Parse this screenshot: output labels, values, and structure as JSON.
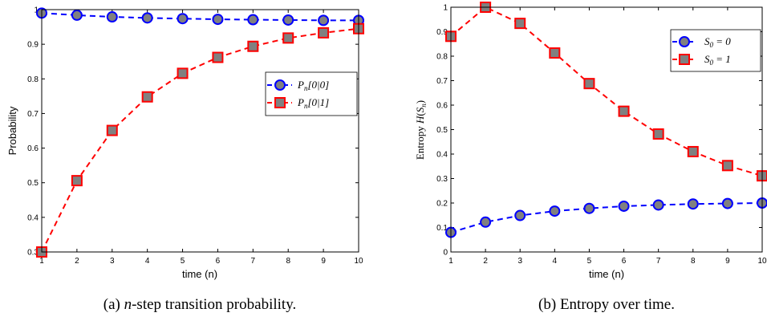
{
  "chart_data": [
    {
      "type": "line",
      "caption": "(a) n-step transition probability.",
      "xlabel": "time (n)",
      "ylabel": "Probability",
      "xlim": [
        1,
        10
      ],
      "ylim": [
        0.3,
        1
      ],
      "x": [
        1,
        2,
        3,
        4,
        5,
        6,
        7,
        8,
        9,
        10
      ],
      "xticks": [
        "1",
        "2",
        "3",
        "4",
        "5",
        "6",
        "7",
        "8",
        "9",
        "10"
      ],
      "yticks": [
        0.3,
        0.4,
        0.5,
        0.6,
        0.7,
        0.8,
        0.9,
        1
      ],
      "yticklabels": [
        "0.3",
        "0.4",
        "0.5",
        "0.6",
        "0.7",
        "0.8",
        "0.9",
        "1"
      ],
      "legend_position": "right-middle",
      "series": [
        {
          "name": "Pn[0|0]",
          "color": "#0000ff",
          "marker": "circle",
          "values": [
            0.99,
            0.984,
            0.979,
            0.976,
            0.974,
            0.972,
            0.971,
            0.97,
            0.969,
            0.969
          ]
        },
        {
          "name": "Pn[0|1]",
          "color": "#ff0000",
          "marker": "square",
          "values": [
            0.3,
            0.506,
            0.651,
            0.748,
            0.816,
            0.862,
            0.894,
            0.918,
            0.933,
            0.945
          ]
        }
      ]
    },
    {
      "type": "line",
      "caption": "(b) Entropy over time.",
      "xlabel": "time (n)",
      "ylabel": "Entropy H(Sn)",
      "xlim": [
        1,
        10
      ],
      "ylim": [
        0,
        1
      ],
      "x": [
        1,
        2,
        3,
        4,
        5,
        6,
        7,
        8,
        9,
        10
      ],
      "xticks": [
        "1",
        "2",
        "3",
        "4",
        "5",
        "6",
        "7",
        "8",
        "9",
        "10"
      ],
      "yticks": [
        0,
        0.1,
        0.2,
        0.3,
        0.4,
        0.5,
        0.6,
        0.7,
        0.8,
        0.9,
        1
      ],
      "yticklabels": [
        "0",
        "0.1",
        "0.2",
        "0.3",
        "0.4",
        "0.5",
        "0.6",
        "0.7",
        "0.8",
        "0.9",
        "1"
      ],
      "legend_position": "top-right",
      "series": [
        {
          "name": "S0 = 0",
          "color": "#0000ff",
          "marker": "circle",
          "values": [
            0.08,
            0.122,
            0.149,
            0.167,
            0.178,
            0.187,
            0.192,
            0.196,
            0.198,
            0.2
          ]
        },
        {
          "name": "S0 = 1",
          "color": "#ff0000",
          "marker": "square",
          "values": [
            0.881,
            1.0,
            0.934,
            0.813,
            0.688,
            0.575,
            0.482,
            0.41,
            0.353,
            0.311
          ]
        }
      ]
    }
  ],
  "marker_fill": "#808080"
}
